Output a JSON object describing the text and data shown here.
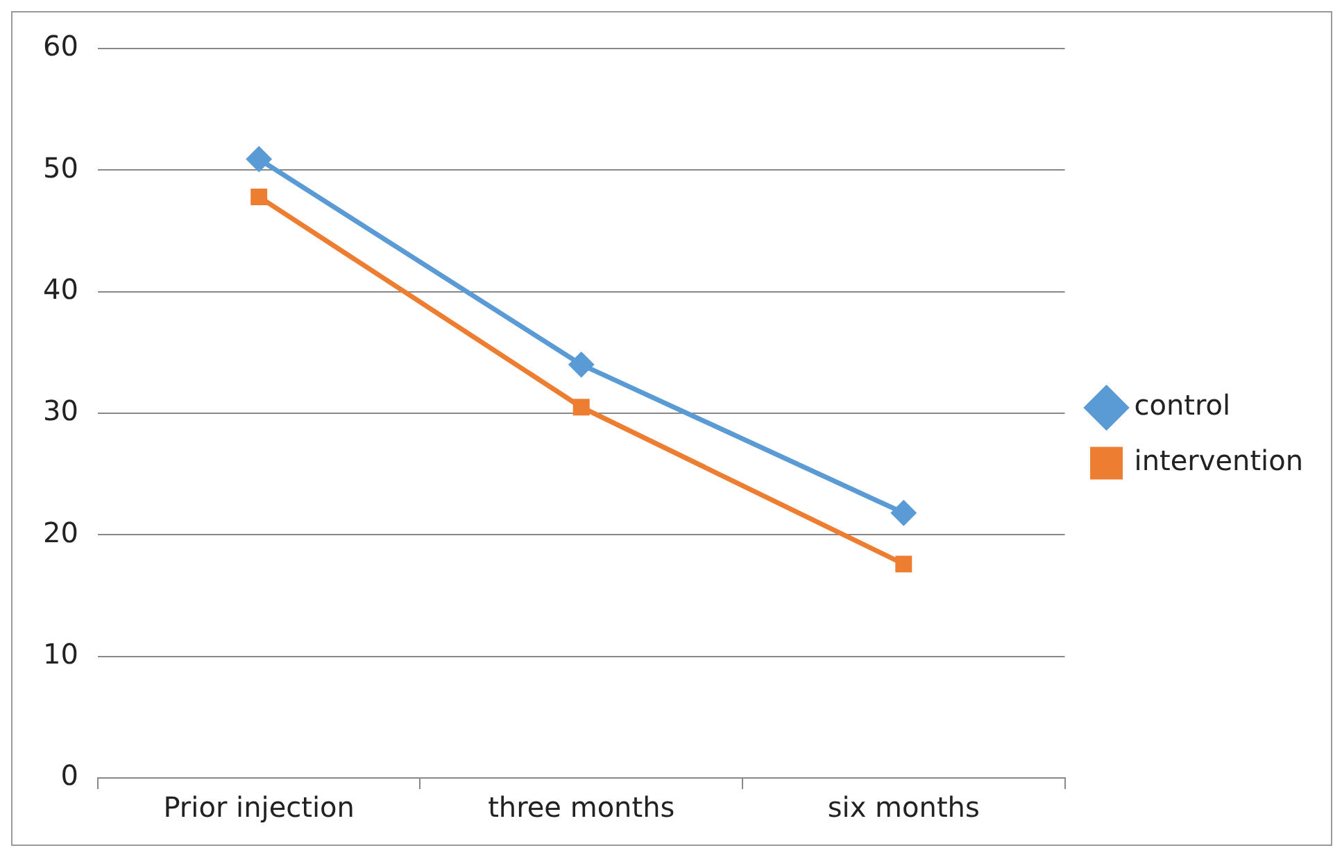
{
  "chart_data": {
    "type": "line",
    "categories": [
      "Prior injection",
      "three months",
      "six months"
    ],
    "series": [
      {
        "name": "control",
        "color": "#5b9bd5",
        "marker": "diamond",
        "values": [
          50.9,
          34.0,
          21.8
        ]
      },
      {
        "name": "intervention",
        "color": "#ed7d31",
        "marker": "square",
        "values": [
          47.8,
          30.5,
          17.6
        ]
      }
    ],
    "ylim": [
      0,
      60
    ],
    "yticks": [
      0,
      10,
      20,
      30,
      40,
      50,
      60
    ],
    "grid": "y",
    "legend": "right",
    "line_style": "solid"
  }
}
